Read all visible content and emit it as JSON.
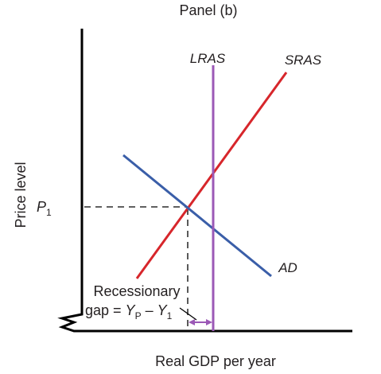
{
  "panel_title": "Panel (b)",
  "y_axis_label": "Price level",
  "x_axis_label": "Real GDP per year",
  "curves": {
    "lras": {
      "label": "LRAS",
      "color": "#9b59b6"
    },
    "sras": {
      "label": "SRAS",
      "color": "#d7262b"
    },
    "ad": {
      "label": "AD",
      "color": "#3a5ea8"
    }
  },
  "price_level_label": {
    "base": "P",
    "sub": "1"
  },
  "annotation": {
    "line1": "Recessionary",
    "line2_prefix": "gap = ",
    "yp_base": "Y",
    "yp_sub": "P",
    "minus": " – ",
    "y1_base": "Y",
    "y1_sub": "1"
  },
  "colors": {
    "axis": "#000000",
    "dashed": "#000000",
    "gap_arrow": "#9b59b6"
  }
}
